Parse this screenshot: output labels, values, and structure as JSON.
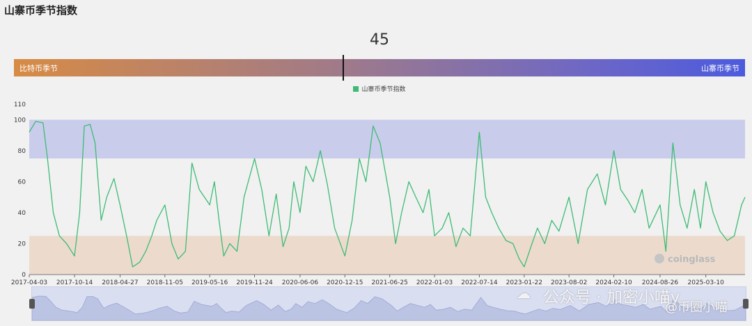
{
  "header": {
    "title": "山寨币季节指数"
  },
  "gauge": {
    "value": "45",
    "value_fraction": 0.45,
    "left_label": "比特币季节",
    "right_label": "山寨币季节"
  },
  "watermark": {
    "wechat": "公众号 · 加密小喵y",
    "handle": "@币圈小喵"
  },
  "logo_text": "coinglass",
  "colors": {
    "line": "#3dbb74",
    "altcoin_band": "#c9cdeb",
    "bitcoin_band": "#ecdbcd",
    "navigator": "#d9def0"
  },
  "chart_data": {
    "type": "line",
    "title": "",
    "xlabel": "",
    "ylabel": "",
    "ylim": [
      0,
      110
    ],
    "yticks": [
      "0",
      "20",
      "40",
      "60",
      "80",
      "100",
      "110"
    ],
    "xticks": [
      "2017-04-03",
      "2017-10-14",
      "2018-04-27",
      "2018-11-05",
      "2019-05-16",
      "2019-11-24",
      "2020-06-06",
      "2020-12-15",
      "2021-06-25",
      "2022-01-03",
      "2022-07-14",
      "2023-01-22",
      "2023-08-02",
      "2024-02-10",
      "2024-08-26",
      "2025-03-10"
    ],
    "bands": [
      {
        "name": "altcoin-season-zone",
        "from": 75,
        "to": 100
      },
      {
        "name": "bitcoin-season-zone",
        "from": 0,
        "to": 25
      }
    ],
    "series": [
      {
        "name": "山寨币季节指数",
        "x": [
          "2017-04-03",
          "2017-05-01",
          "2017-06-01",
          "2017-06-20",
          "2017-07-15",
          "2017-08-10",
          "2017-09-10",
          "2017-10-14",
          "2017-11-05",
          "2017-11-25",
          "2017-12-20",
          "2018-01-10",
          "2018-02-05",
          "2018-03-01",
          "2018-04-01",
          "2018-04-27",
          "2018-05-25",
          "2018-06-20",
          "2018-07-20",
          "2018-08-15",
          "2018-09-10",
          "2018-10-01",
          "2018-11-05",
          "2018-12-05",
          "2019-01-01",
          "2019-02-01",
          "2019-03-01",
          "2019-04-01",
          "2019-05-16",
          "2019-06-05",
          "2019-06-25",
          "2019-07-15",
          "2019-08-10",
          "2019-09-10",
          "2019-10-10",
          "2019-11-24",
          "2019-12-25",
          "2020-01-25",
          "2020-02-25",
          "2020-03-25",
          "2020-04-20",
          "2020-05-10",
          "2020-06-06",
          "2020-07-01",
          "2020-08-01",
          "2020-09-01",
          "2020-10-01",
          "2020-11-01",
          "2020-12-15",
          "2021-01-15",
          "2021-02-15",
          "2021-03-15",
          "2021-04-15",
          "2021-05-15",
          "2021-06-25",
          "2021-07-20",
          "2021-08-15",
          "2021-09-15",
          "2021-10-15",
          "2021-11-15",
          "2021-12-10",
          "2022-01-03",
          "2022-02-05",
          "2022-03-05",
          "2022-04-05",
          "2022-05-05",
          "2022-06-05",
          "2022-07-14",
          "2022-08-10",
          "2022-09-05",
          "2022-10-05",
          "2022-11-05",
          "2022-12-05",
          "2023-01-01",
          "2023-01-22",
          "2023-02-20",
          "2023-03-20",
          "2023-04-20",
          "2023-05-20",
          "2023-06-20",
          "2023-08-02",
          "2023-09-10",
          "2023-10-20",
          "2023-12-01",
          "2024-01-05",
          "2024-02-10",
          "2024-03-10",
          "2024-04-10",
          "2024-05-10",
          "2024-06-10",
          "2024-07-10",
          "2024-08-26",
          "2024-09-20",
          "2024-10-20",
          "2024-11-20",
          "2024-12-20",
          "2025-01-20",
          "2025-02-15",
          "2025-03-10",
          "2025-04-10",
          "2025-05-10",
          "2025-06-10",
          "2025-07-10",
          "2025-08-10",
          "2025-08-25"
        ],
        "values": [
          92,
          99,
          98,
          75,
          40,
          25,
          20,
          12,
          40,
          96,
          97,
          85,
          35,
          50,
          62,
          45,
          25,
          5,
          8,
          15,
          25,
          35,
          45,
          20,
          10,
          15,
          72,
          55,
          45,
          60,
          35,
          12,
          20,
          15,
          50,
          75,
          55,
          25,
          52,
          18,
          30,
          60,
          40,
          70,
          60,
          80,
          58,
          30,
          12,
          35,
          75,
          60,
          96,
          85,
          50,
          20,
          40,
          60,
          50,
          40,
          55,
          25,
          30,
          40,
          18,
          30,
          25,
          92,
          50,
          40,
          30,
          22,
          20,
          10,
          5,
          18,
          30,
          20,
          35,
          28,
          50,
          20,
          55,
          65,
          45,
          80,
          55,
          48,
          40,
          55,
          30,
          45,
          15,
          85,
          45,
          30,
          55,
          30,
          60,
          40,
          28,
          22,
          25,
          45,
          50
        ]
      }
    ]
  }
}
